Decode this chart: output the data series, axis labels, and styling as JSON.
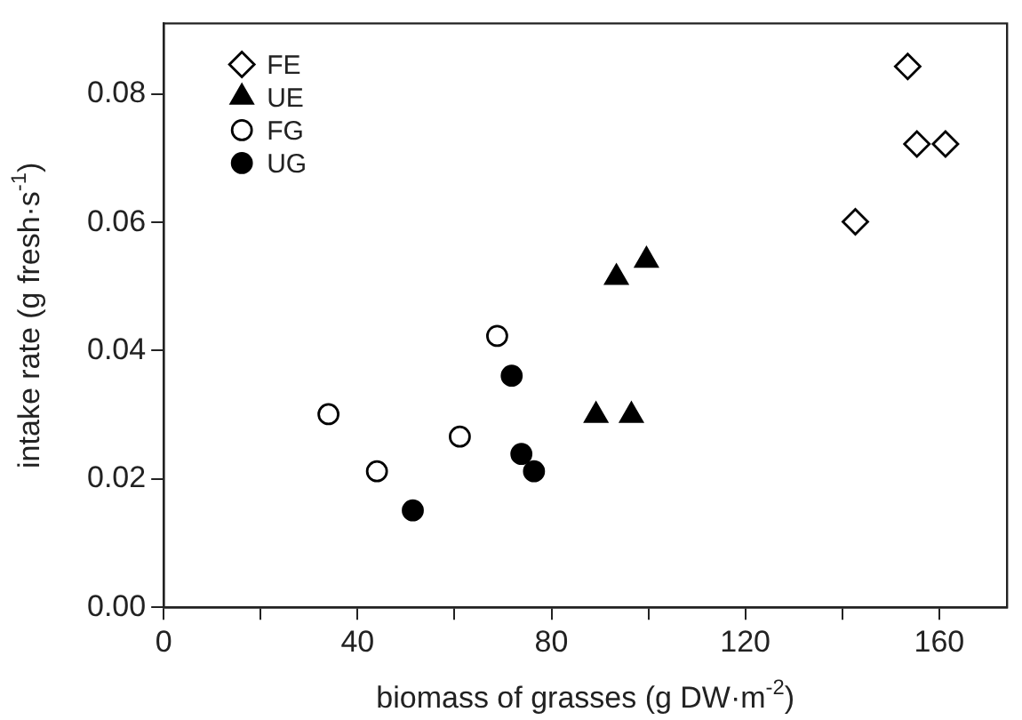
{
  "chart_data": {
    "type": "scatter",
    "xlabel": "biomass of grasses (g DW·m$^{-2}$)",
    "ylabel": "intake rate (g fresh·s$^{-1}$)",
    "xlim": [
      0,
      174
    ],
    "ylim": [
      0,
      0.091
    ],
    "xticks": [
      0,
      {
        "value": 20,
        "label": null
      },
      40,
      {
        "value": 60,
        "label": null
      },
      80,
      {
        "value": 100,
        "label": null
      },
      120,
      {
        "value": 140,
        "label": null
      },
      160
    ],
    "yticks": [
      {
        "value": 0,
        "label": "0.00"
      },
      {
        "value": 0.02,
        "label": "0.02"
      },
      {
        "value": 0.04,
        "label": "0.04"
      },
      {
        "value": 0.06,
        "label": "0.06"
      },
      {
        "value": 0.08,
        "label": "0.08"
      }
    ],
    "grid": false,
    "legend": "top left",
    "series": [
      {
        "name": "FE",
        "marker": "diamond",
        "color": "#ffffff",
        "x": [
          153.5,
          155.4,
          161.3,
          142.7
        ],
        "values": [
          0.0843,
          0.0722,
          0.0722,
          0.0601
        ]
      },
      {
        "name": "UE",
        "marker": "triangle",
        "color": "#000000",
        "x": [
          93.4,
          99.6,
          89.2,
          96.5
        ],
        "values": [
          0.0514,
          0.0541,
          0.0299,
          0.0299
        ]
      },
      {
        "name": "FG",
        "marker": "circle",
        "color": "#ffffff",
        "x": [
          34.0,
          44.0,
          61.1,
          68.8
        ],
        "values": [
          0.0301,
          0.0212,
          0.0266,
          0.0423
        ]
      },
      {
        "name": "UG",
        "marker": "circle",
        "color": "#000000",
        "x": [
          51.4,
          71.8,
          73.8,
          76.4
        ],
        "values": [
          0.0151,
          0.0361,
          0.0239,
          0.0212
        ]
      }
    ]
  }
}
